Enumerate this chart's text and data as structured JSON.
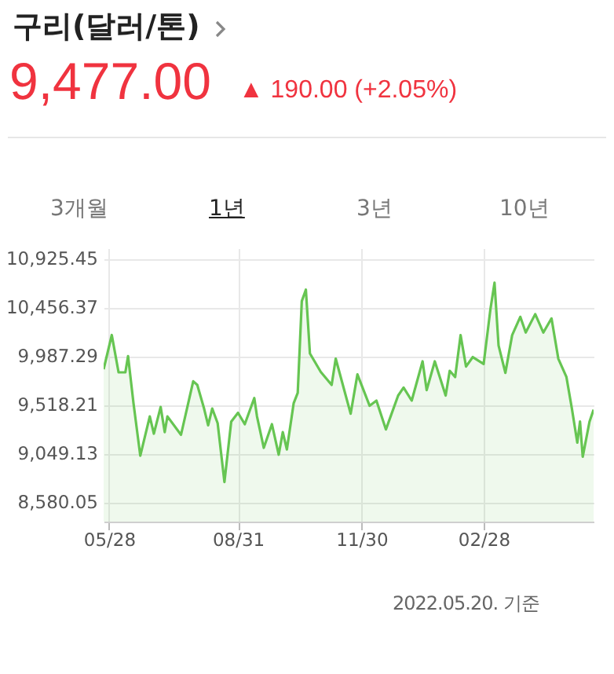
{
  "chart_data": {
    "type": "area",
    "title": "구리(달러/톤)",
    "annotations": [
      "9,477.00",
      "▲ 190.00 (+2.05%)",
      "3개월",
      "1년",
      "3년",
      "10년",
      "2022.05.20. 기준"
    ],
    "x": [
      "2021-05-24",
      "2021-05-30",
      "2021-06-04",
      "2021-06-09",
      "2021-06-11",
      "2021-06-15",
      "2021-06-20",
      "2021-06-27",
      "2021-06-30",
      "2021-07-05",
      "2021-07-08",
      "2021-07-10",
      "2021-07-20",
      "2021-07-29",
      "2021-08-01",
      "2021-08-06",
      "2021-08-09",
      "2021-08-12",
      "2021-08-16",
      "2021-08-21",
      "2021-08-26",
      "2021-08-31",
      "2021-09-05",
      "2021-09-12",
      "2021-09-14",
      "2021-09-19",
      "2021-09-25",
      "2021-09-30",
      "2021-10-03",
      "2021-10-06",
      "2021-10-11",
      "2021-10-14",
      "2021-10-17",
      "2021-10-20",
      "2021-10-23",
      "2021-10-31",
      "2021-11-08",
      "2021-11-11",
      "2021-11-22",
      "2021-11-27",
      "2021-12-06",
      "2021-12-11",
      "2021-12-18",
      "2021-12-27",
      "2021-12-31",
      "2022-01-06",
      "2022-01-14",
      "2022-01-17",
      "2022-01-23",
      "2022-01-31",
      "2022-02-03",
      "2022-02-07",
      "2022-02-11",
      "2022-02-15",
      "2022-02-20",
      "2022-02-28",
      "2022-03-05",
      "2022-03-08",
      "2022-03-11",
      "2022-03-16",
      "2022-03-21",
      "2022-03-27",
      "2022-03-31",
      "2022-04-07",
      "2022-04-13",
      "2022-04-19",
      "2022-04-24",
      "2022-04-30",
      "2022-05-04",
      "2022-05-08",
      "2022-05-10",
      "2022-05-12",
      "2022-05-17",
      "2022-05-20"
    ],
    "series": [
      {
        "color": "#66c552",
        "values": [
          9866,
          10195,
          9836,
          9836,
          9992,
          9538,
          9034,
          9412,
          9246,
          9503,
          9261,
          9412,
          9235,
          9750,
          9715,
          9488,
          9326,
          9488,
          9347,
          8781,
          9362,
          9447,
          9337,
          9589,
          9412,
          9110,
          9337,
          9044,
          9261,
          9094,
          9538,
          9639,
          10521,
          10632,
          10017,
          9840,
          9715,
          9968,
          9438,
          9816,
          9514,
          9564,
          9287,
          9613,
          9689,
          9564,
          9942,
          9665,
          9942,
          9613,
          9851,
          9791,
          10194,
          9892,
          9983,
          9916,
          10445,
          10698,
          10093,
          9831,
          10194,
          10370,
          10219,
          10396,
          10219,
          10355,
          9968,
          9791,
          9488,
          9160,
          9362,
          9024,
          9362,
          9477
        ]
      }
    ],
    "xlim": [
      "2021-05-24",
      "2022-05-20"
    ],
    "xticks": [
      {
        "value": "2021-05-28",
        "label": "05/28"
      },
      {
        "value": "2021-08-31",
        "label": "08/31"
      },
      {
        "value": "2021-11-30",
        "label": "11/30"
      },
      {
        "value": "2022-02-28",
        "label": "02/28"
      }
    ],
    "ylim": [
      8400,
      11030
    ],
    "yticks": [
      {
        "value": 8580.05,
        "label": "8,580.05"
      },
      {
        "value": 9049.13,
        "label": "9,049.13"
      },
      {
        "value": 9518.21,
        "label": "9,518.21"
      },
      {
        "value": 9987.29,
        "label": "9,987.29"
      },
      {
        "value": 10456.37,
        "label": "10,456.37"
      },
      {
        "value": 10925.45,
        "label": "10,925.45"
      }
    ],
    "grid": true,
    "marker": "none",
    "line_style": "solid"
  }
}
